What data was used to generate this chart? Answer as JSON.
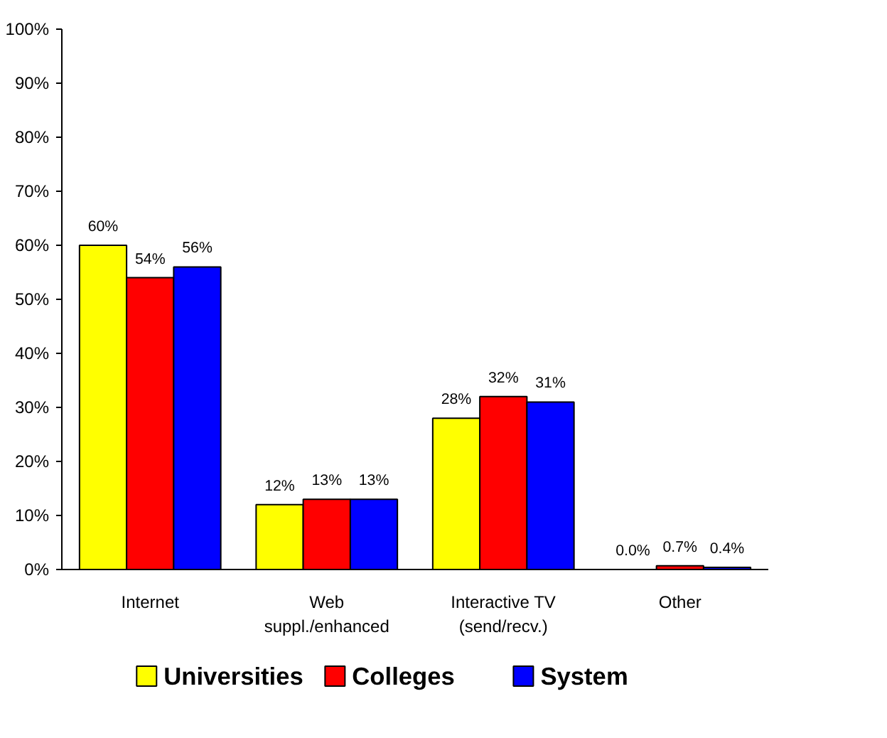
{
  "chart_data": {
    "type": "bar",
    "categories": [
      "Internet",
      "Web\nsuppl./enhanced",
      "Interactive TV\n(send/recv.)",
      "Other"
    ],
    "series": [
      {
        "name": "Universities",
        "color": "#ffff00",
        "values": [
          60,
          12,
          28,
          0.0
        ],
        "value_labels": [
          "60%",
          "12%",
          "28%",
          "0.0%"
        ]
      },
      {
        "name": "Colleges",
        "color": "#ff0000",
        "values": [
          54,
          13,
          32,
          0.7
        ],
        "value_labels": [
          "54%",
          "13%",
          "32%",
          "0.7%"
        ]
      },
      {
        "name": "System",
        "color": "#0000ff",
        "values": [
          56,
          13,
          31,
          0.4
        ],
        "value_labels": [
          "56%",
          "13%",
          "31%",
          "0.4%"
        ]
      }
    ],
    "ylim": [
      0,
      100
    ],
    "yticks": [
      {
        "value": 0,
        "label": "0%"
      },
      {
        "value": 10,
        "label": "10%"
      },
      {
        "value": 20,
        "label": "20%"
      },
      {
        "value": 30,
        "label": "30%"
      },
      {
        "value": 40,
        "label": "40%"
      },
      {
        "value": 50,
        "label": "50%"
      },
      {
        "value": 60,
        "label": "60%"
      },
      {
        "value": 70,
        "label": "70%"
      },
      {
        "value": 80,
        "label": "80%"
      },
      {
        "value": 90,
        "label": "90%"
      },
      {
        "value": 100,
        "label": "100%"
      }
    ],
    "grid": false,
    "legend": "bottom"
  }
}
